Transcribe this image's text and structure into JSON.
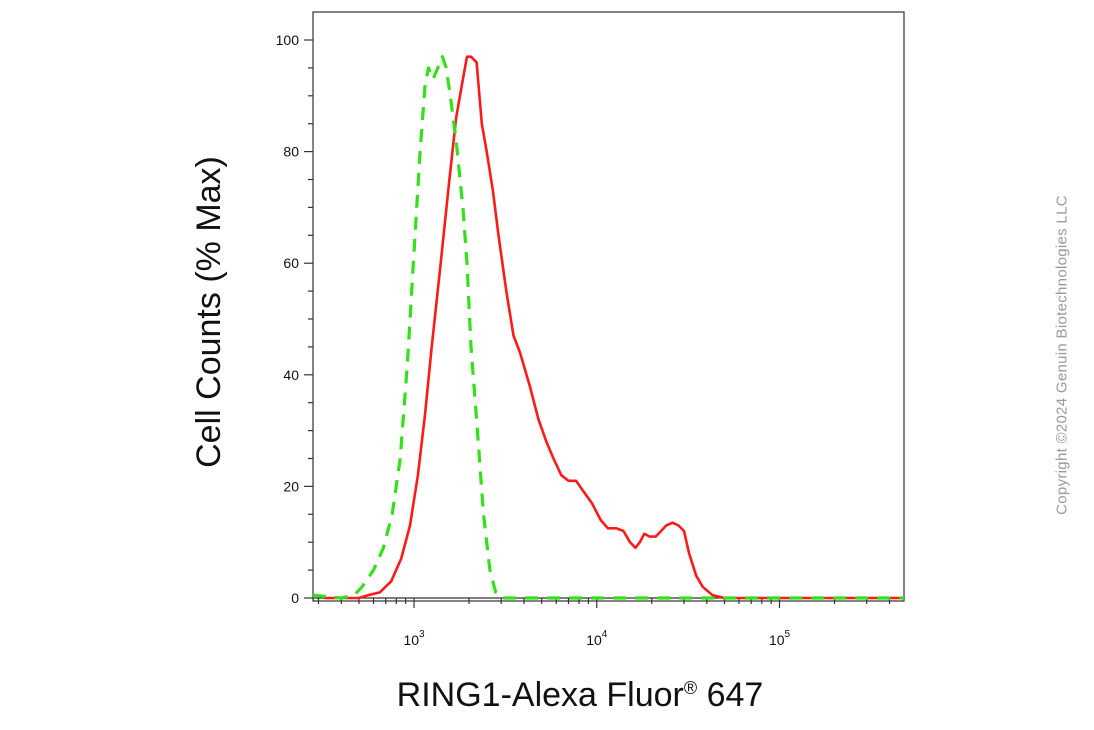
{
  "chart_data": {
    "type": "line",
    "ylabel": "Cell Counts (% Max)",
    "xlabel_text": "RING1-Alexa Fluor",
    "xlabel_sup": "®",
    "xlabel_tail": " 647",
    "x_scale": "log",
    "xlim": [
      280,
      480000
    ],
    "ylim": [
      0,
      105
    ],
    "y_ticks": [
      0,
      20,
      40,
      60,
      80,
      100
    ],
    "x_ticks": [
      {
        "value": 1000,
        "base": "10",
        "exp": "3"
      },
      {
        "value": 10000,
        "base": "10",
        "exp": "4"
      },
      {
        "value": 100000,
        "base": "10",
        "exp": "5"
      }
    ],
    "grid": false,
    "legend": "none",
    "series": [
      {
        "color": "#ff1a1a",
        "style": "solid",
        "points": [
          [
            320,
            0
          ],
          [
            500,
            0
          ],
          [
            560,
            0.5
          ],
          [
            650,
            1
          ],
          [
            750,
            3
          ],
          [
            850,
            7
          ],
          [
            950,
            13
          ],
          [
            1050,
            22
          ],
          [
            1150,
            33
          ],
          [
            1250,
            45
          ],
          [
            1400,
            60
          ],
          [
            1550,
            74
          ],
          [
            1700,
            86
          ],
          [
            1850,
            93
          ],
          [
            1950,
            97
          ],
          [
            2050,
            97
          ],
          [
            2200,
            96
          ],
          [
            2350,
            85
          ],
          [
            2500,
            80
          ],
          [
            2700,
            73
          ],
          [
            2900,
            65
          ],
          [
            3200,
            55
          ],
          [
            3500,
            47
          ],
          [
            3800,
            44
          ],
          [
            4300,
            38
          ],
          [
            4800,
            32
          ],
          [
            5300,
            28
          ],
          [
            5800,
            25
          ],
          [
            6400,
            22
          ],
          [
            7000,
            21
          ],
          [
            7700,
            21
          ],
          [
            8500,
            19
          ],
          [
            9400,
            17
          ],
          [
            10500,
            14
          ],
          [
            11500,
            12.5
          ],
          [
            12800,
            12.5
          ],
          [
            14000,
            12
          ],
          [
            15200,
            10
          ],
          [
            16300,
            9
          ],
          [
            17200,
            10
          ],
          [
            18200,
            11.5
          ],
          [
            19500,
            11
          ],
          [
            21000,
            11
          ],
          [
            22500,
            12
          ],
          [
            24000,
            13
          ],
          [
            26000,
            13.5
          ],
          [
            28000,
            13
          ],
          [
            30000,
            12
          ],
          [
            32000,
            8
          ],
          [
            35000,
            4
          ],
          [
            38000,
            2
          ],
          [
            43000,
            0.5
          ],
          [
            50000,
            0
          ],
          [
            480000,
            0
          ]
        ]
      },
      {
        "color": "#33e01a",
        "style": "dashed",
        "points": [
          [
            280,
            0.5
          ],
          [
            400,
            0
          ],
          [
            470,
            0.5
          ],
          [
            520,
            2
          ],
          [
            600,
            5
          ],
          [
            680,
            9
          ],
          [
            760,
            15
          ],
          [
            840,
            25
          ],
          [
            920,
            42
          ],
          [
            1000,
            62
          ],
          [
            1080,
            80
          ],
          [
            1150,
            92
          ],
          [
            1200,
            95
          ],
          [
            1270,
            93
          ],
          [
            1350,
            95
          ],
          [
            1430,
            97
          ],
          [
            1500,
            95
          ],
          [
            1580,
            90
          ],
          [
            1700,
            82
          ],
          [
            1850,
            70
          ],
          [
            1950,
            60
          ],
          [
            2050,
            45
          ],
          [
            2200,
            32
          ],
          [
            2400,
            15
          ],
          [
            2600,
            5
          ],
          [
            2800,
            1
          ],
          [
            3000,
            0
          ],
          [
            480000,
            0
          ]
        ]
      }
    ]
  },
  "watermark": "Copyright ©2024 Genuin Biotechnologies LLC"
}
